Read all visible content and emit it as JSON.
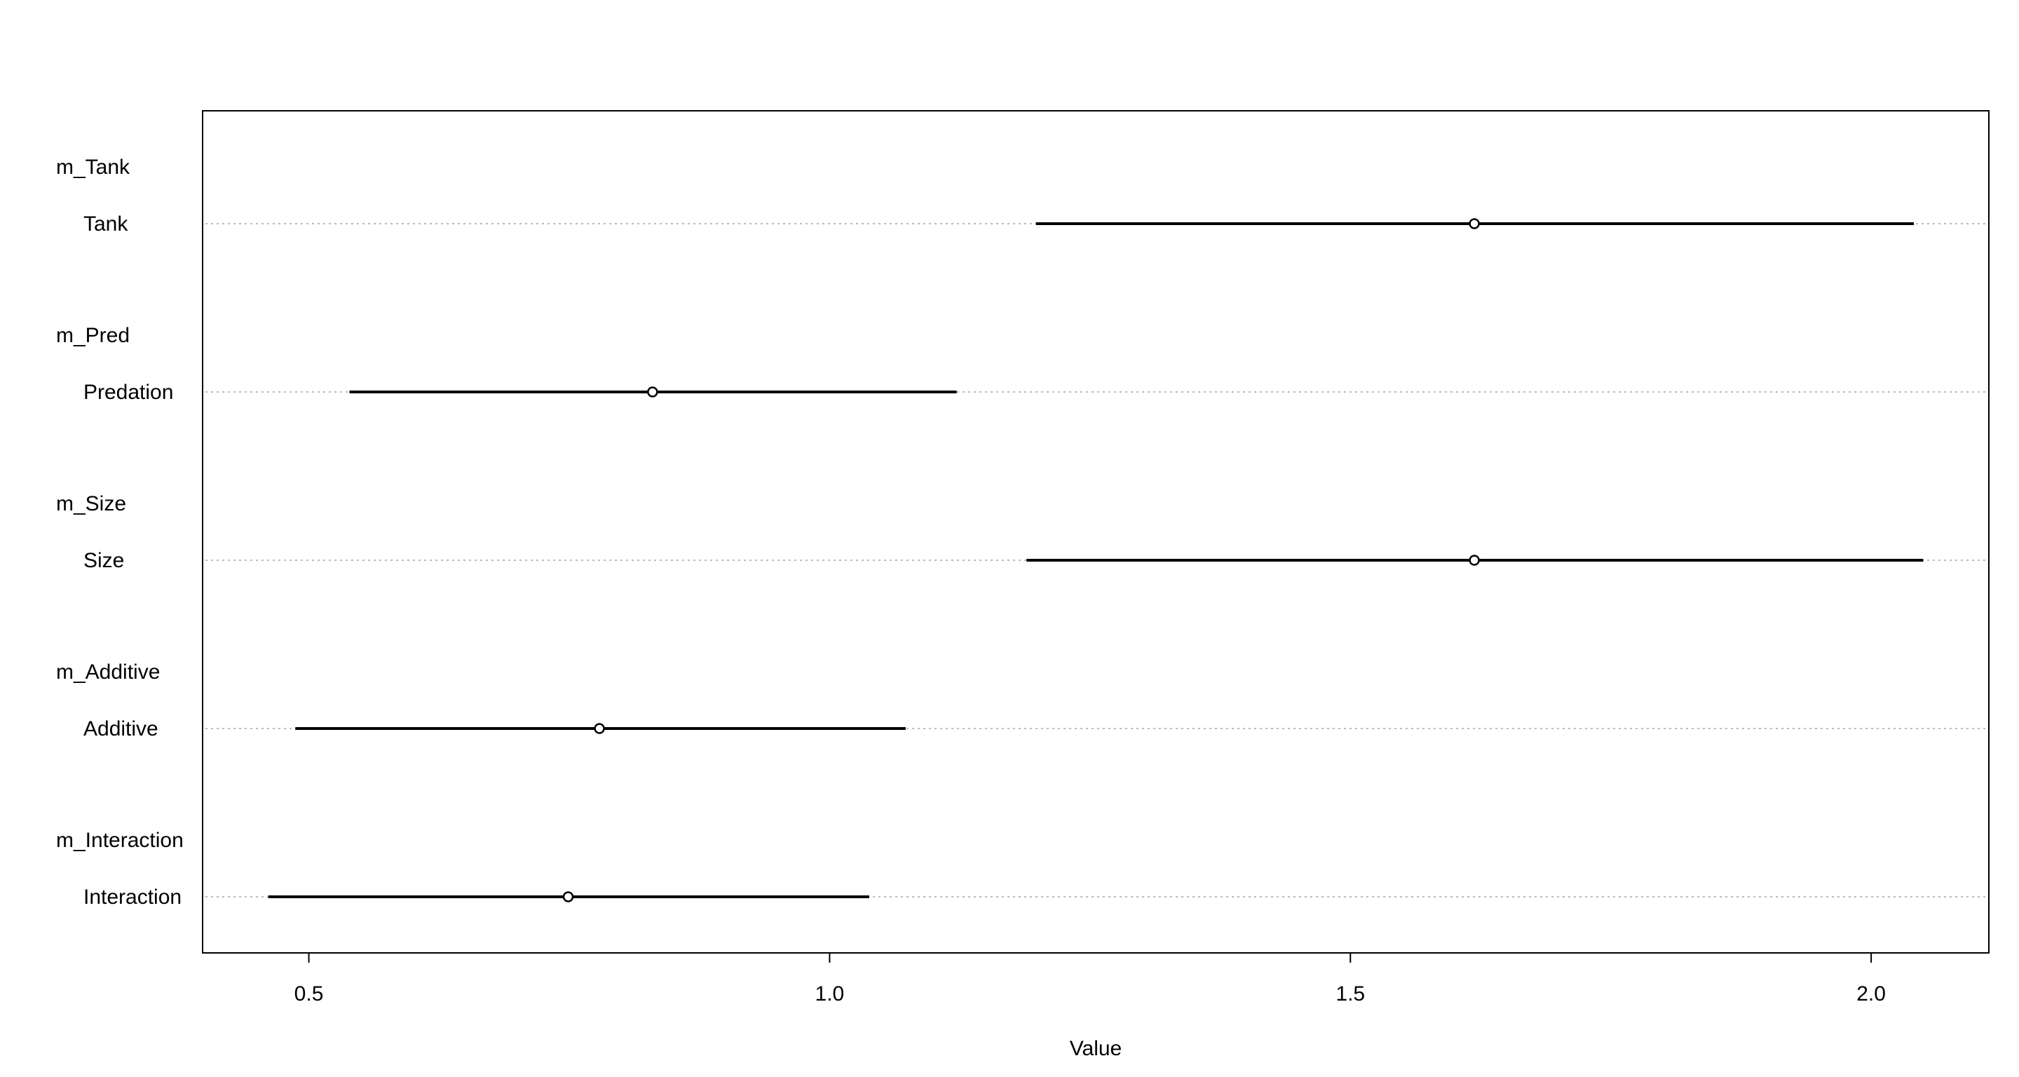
{
  "chart_data": {
    "type": "coeftab",
    "models": [
      "m_Tank",
      "m_Pred",
      "m_Size",
      "m_Additive",
      "m_Interaction"
    ],
    "categories": [
      "Tank",
      "Predation",
      "Size",
      "Additive",
      "Interaction"
    ],
    "values": [
      1.619,
      0.83,
      1.619,
      0.779,
      0.749
    ],
    "lower": [
      1.198,
      0.539,
      1.189,
      0.487,
      0.461
    ],
    "upper": [
      2.041,
      1.122,
      2.05,
      1.073,
      1.038
    ],
    "xlabel": "Value",
    "xlim": [
      0.398,
      2.113
    ],
    "xticks": [
      0.5,
      {
        "value": 1.0,
        "label": "1.0"
      },
      1.5,
      {
        "value": 2.0,
        "label": "2.0"
      }
    ],
    "grid": true,
    "color": "#000000"
  }
}
